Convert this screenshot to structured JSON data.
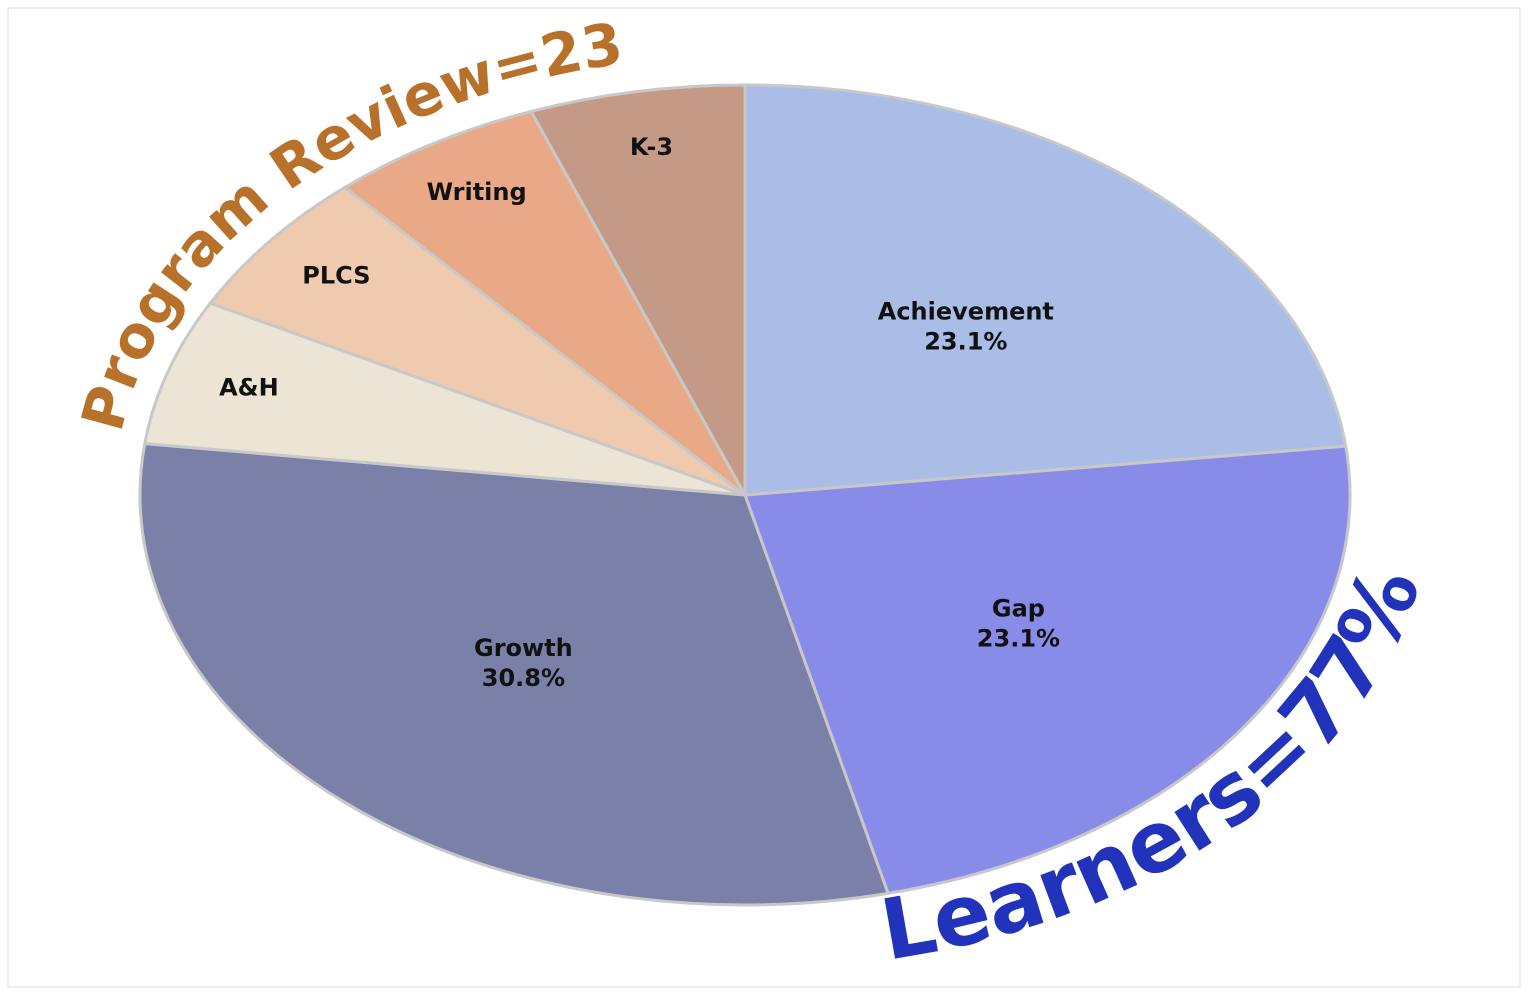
{
  "chart_data": {
    "type": "pie",
    "categories": [
      "Achievement",
      "Gap",
      "Growth",
      "A&H",
      "PLCS",
      "Writing",
      "K-3"
    ],
    "values": [
      23.1,
      23.1,
      30.8,
      5.75,
      5.75,
      5.75,
      5.75
    ],
    "value_labels": [
      "23.1%",
      "23.1%",
      "30.8%",
      null,
      null,
      null,
      null
    ],
    "colors": [
      "#a9bde7",
      "#888ce8",
      "#7b80a8",
      "#ece4d4",
      "#efcaae",
      "#e9a987",
      "#c49a87"
    ],
    "annotations": [
      "Program Review=23%",
      "Learners=77%"
    ],
    "annotation_colors": [
      "#b8712b",
      "#2233bb"
    ]
  }
}
